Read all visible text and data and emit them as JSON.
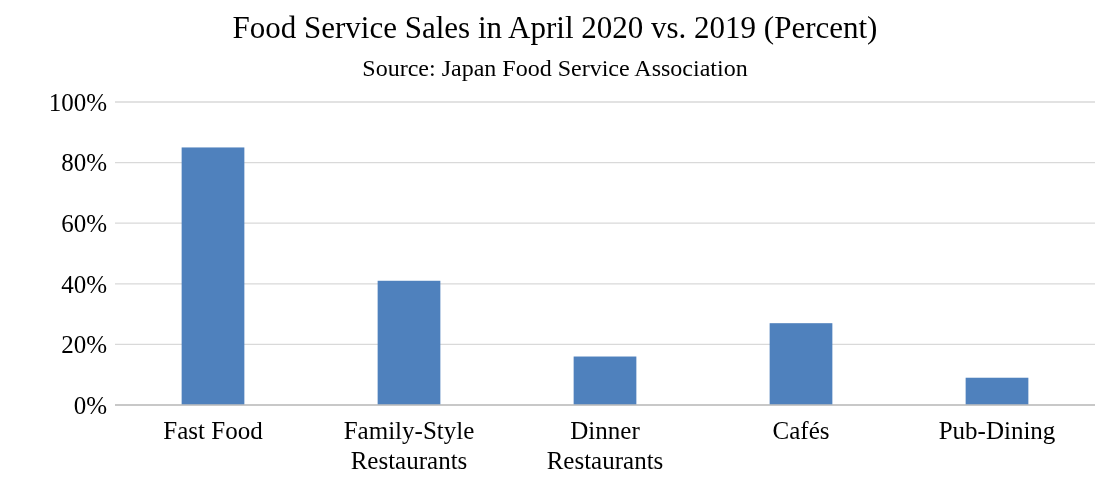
{
  "chart_data": {
    "type": "bar",
    "title": "Food Service Sales in April 2020 vs. 2019 (Percent)",
    "subtitle": "Source: Japan Food Service Association",
    "categories": [
      "Fast Food",
      "Family-Style Restaurants",
      "Dinner Restaurants",
      "Cafés",
      "Pub-Dining"
    ],
    "values": [
      85,
      41,
      16,
      27,
      9
    ],
    "color": "#4f81bd",
    "ylim": [
      0,
      100
    ],
    "yticks": [
      {
        "value": 0,
        "label": "0%"
      },
      {
        "value": 20,
        "label": "20%"
      },
      {
        "value": 40,
        "label": "40%"
      },
      {
        "value": 60,
        "label": "60%"
      },
      {
        "value": 80,
        "label": "80%"
      },
      {
        "value": 100,
        "label": "100%"
      }
    ],
    "grid": "y"
  }
}
